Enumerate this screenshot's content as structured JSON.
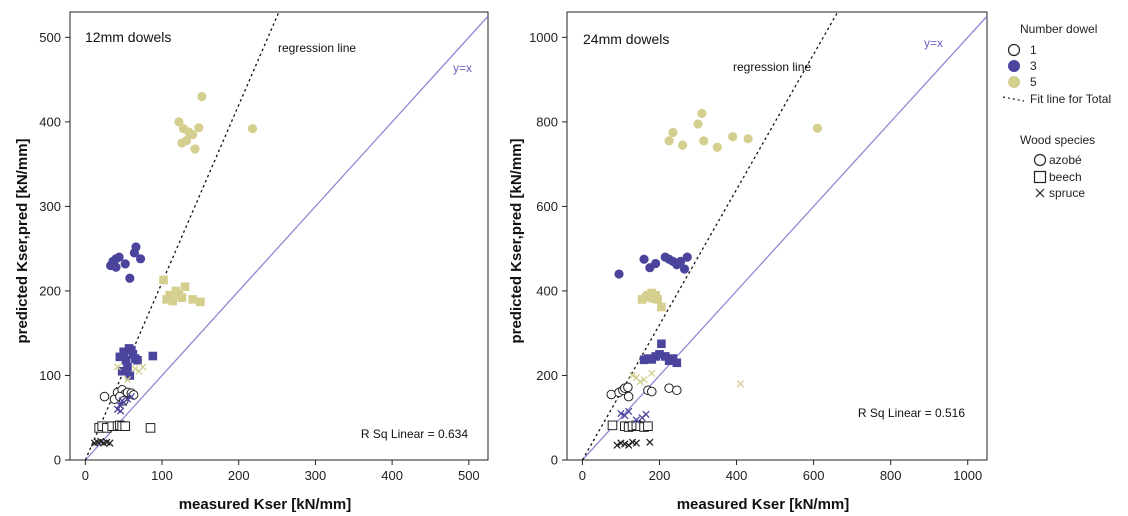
{
  "colors": {
    "one_dowel": "#ffffff",
    "three_dowels": "#4b449d",
    "five_dowels": "#d4cf8f",
    "identity_line": "#8f88d6",
    "regression_line": "#111111"
  },
  "legend": {
    "number_title": "Number dowel",
    "number_items": [
      {
        "label": "1",
        "key": "one_dowel"
      },
      {
        "label": "3",
        "key": "three_dowels"
      },
      {
        "label": "5",
        "key": "five_dowels"
      }
    ],
    "fit_label": "Fit line for Total",
    "species_title": "Wood species",
    "species_items": [
      {
        "label": "azobé",
        "marker": "circle"
      },
      {
        "label": "beech",
        "marker": "square"
      },
      {
        "label": "spruce",
        "marker": "cross"
      }
    ]
  },
  "chart_data": [
    {
      "type": "scatter",
      "title": "12mm dowels",
      "xlabel": "measured Kser [kN/mm]",
      "ylabel": "predicted Kser,pred [kN/mm]",
      "xlim": [
        -20,
        525
      ],
      "ylim": [
        0,
        530
      ],
      "xticks": [
        0,
        100,
        200,
        300,
        400,
        500
      ],
      "yticks": [
        0,
        100,
        200,
        300,
        400,
        500
      ],
      "regression_label": "regression line",
      "identity_label": "y=x",
      "r2_label": "R Sq Linear = 0.634",
      "regression": {
        "slope": 2.1,
        "intercept": 0
      },
      "grid": false,
      "series": [
        {
          "name": "1",
          "species": "azobé",
          "points": [
            [
              25,
              75
            ],
            [
              38,
              72
            ],
            [
              42,
              80
            ],
            [
              48,
              83
            ],
            [
              52,
              78
            ],
            [
              55,
              80
            ],
            [
              60,
              79
            ],
            [
              63,
              77
            ],
            [
              45,
              75
            ],
            [
              50,
              70
            ]
          ]
        },
        {
          "name": "1",
          "species": "beech",
          "points": [
            [
              18,
              38
            ],
            [
              22,
              40
            ],
            [
              28,
              38
            ],
            [
              35,
              40
            ],
            [
              42,
              40
            ],
            [
              45,
              41
            ],
            [
              48,
              40
            ],
            [
              52,
              40
            ],
            [
              85,
              38
            ]
          ]
        },
        {
          "name": "1",
          "species": "spruce",
          "points": [
            [
              12,
              20
            ],
            [
              16,
              21
            ],
            [
              20,
              22
            ],
            [
              24,
              20
            ],
            [
              28,
              21
            ],
            [
              32,
              20
            ]
          ]
        },
        {
          "name": "3",
          "species": "azobé",
          "points": [
            [
              33,
              230
            ],
            [
              36,
              235
            ],
            [
              40,
              238
            ],
            [
              44,
              240
            ],
            [
              52,
              232
            ],
            [
              58,
              215
            ],
            [
              64,
              245
            ],
            [
              66,
              252
            ],
            [
              72,
              238
            ],
            [
              40,
              228
            ]
          ]
        },
        {
          "name": "3",
          "species": "beech",
          "points": [
            [
              45,
              122
            ],
            [
              50,
              128
            ],
            [
              53,
              118
            ],
            [
              57,
              132
            ],
            [
              60,
              130
            ],
            [
              62,
              125
            ],
            [
              65,
              120
            ],
            [
              68,
              118
            ],
            [
              88,
              123
            ],
            [
              55,
              110
            ],
            [
              48,
              105
            ],
            [
              58,
              100
            ]
          ]
        },
        {
          "name": "3",
          "species": "spruce",
          "points": [
            [
              42,
              60
            ],
            [
              45,
              65
            ],
            [
              48,
              70
            ],
            [
              50,
              68
            ],
            [
              55,
              72
            ],
            [
              60,
              75
            ],
            [
              46,
              58
            ]
          ]
        },
        {
          "name": "5",
          "species": "azobé",
          "points": [
            [
              122,
              400
            ],
            [
              128,
              392
            ],
            [
              132,
              378
            ],
            [
              126,
              375
            ],
            [
              140,
              385
            ],
            [
              143,
              368
            ],
            [
              148,
              393
            ],
            [
              152,
              430
            ],
            [
              135,
              388
            ],
            [
              218,
              392
            ]
          ]
        },
        {
          "name": "5",
          "species": "beech",
          "points": [
            [
              102,
              213
            ],
            [
              106,
              190
            ],
            [
              110,
              195
            ],
            [
              114,
              188
            ],
            [
              118,
              200
            ],
            [
              122,
              196
            ],
            [
              126,
              192
            ],
            [
              130,
              205
            ],
            [
              140,
              190
            ],
            [
              150,
              187
            ]
          ]
        },
        {
          "name": "5",
          "species": "spruce",
          "points": [
            [
              42,
              110
            ],
            [
              55,
              95
            ],
            [
              65,
              108
            ],
            [
              70,
              105
            ],
            [
              75,
              110
            ]
          ]
        }
      ]
    },
    {
      "type": "scatter",
      "title": "24mm dowels",
      "xlabel": "measured Kser [kN/mm]",
      "ylabel": "predicted Kser,pred [kN/mm]",
      "xlim": [
        -40,
        1050
      ],
      "ylim": [
        0,
        1060
      ],
      "xticks": [
        0,
        200,
        400,
        600,
        800,
        1000
      ],
      "yticks": [
        0,
        200,
        400,
        600,
        800,
        1000
      ],
      "regression_label": "regression line",
      "identity_label": "y=x",
      "r2_label": "R Sq Linear = 0.516",
      "regression": {
        "slope": 1.6,
        "intercept": 0
      },
      "grid": false,
      "series": [
        {
          "name": "1",
          "species": "azobé",
          "points": [
            [
              75,
              155
            ],
            [
              95,
              160
            ],
            [
              105,
              165
            ],
            [
              110,
              170
            ],
            [
              118,
              172
            ],
            [
              120,
              150
            ],
            [
              170,
              165
            ],
            [
              180,
              162
            ],
            [
              225,
              170
            ],
            [
              245,
              165
            ]
          ]
        },
        {
          "name": "1",
          "species": "beech",
          "points": [
            [
              78,
              82
            ],
            [
              110,
              80
            ],
            [
              120,
              78
            ],
            [
              130,
              80
            ],
            [
              140,
              82
            ],
            [
              150,
              80
            ],
            [
              160,
              78
            ],
            [
              170,
              80
            ]
          ]
        },
        {
          "name": "1",
          "species": "spruce",
          "points": [
            [
              90,
              35
            ],
            [
              100,
              40
            ],
            [
              110,
              38
            ],
            [
              120,
              35
            ],
            [
              130,
              42
            ],
            [
              140,
              40
            ],
            [
              175,
              42
            ]
          ]
        },
        {
          "name": "3",
          "species": "azobé",
          "points": [
            [
              95,
              440
            ],
            [
              160,
              475
            ],
            [
              175,
              455
            ],
            [
              190,
              465
            ],
            [
              215,
              480
            ],
            [
              225,
              475
            ],
            [
              235,
              470
            ],
            [
              245,
              462
            ],
            [
              255,
              470
            ],
            [
              265,
              452
            ],
            [
              272,
              480
            ]
          ]
        },
        {
          "name": "3",
          "species": "beech",
          "points": [
            [
              160,
              237
            ],
            [
              170,
              240
            ],
            [
              180,
              238
            ],
            [
              190,
              245
            ],
            [
              200,
              250
            ],
            [
              205,
              275
            ],
            [
              215,
              245
            ],
            [
              225,
              235
            ],
            [
              235,
              240
            ],
            [
              245,
              230
            ]
          ]
        },
        {
          "name": "3",
          "species": "spruce",
          "points": [
            [
              100,
              110
            ],
            [
              110,
              105
            ],
            [
              120,
              115
            ],
            [
              140,
              95
            ],
            [
              155,
              100
            ],
            [
              165,
              108
            ]
          ]
        },
        {
          "name": "5",
          "species": "azobé",
          "points": [
            [
              225,
              755
            ],
            [
              235,
              775
            ],
            [
              260,
              745
            ],
            [
              300,
              795
            ],
            [
              310,
              820
            ],
            [
              315,
              755
            ],
            [
              350,
              740
            ],
            [
              390,
              765
            ],
            [
              430,
              760
            ],
            [
              610,
              785
            ]
          ]
        },
        {
          "name": "5",
          "species": "beech",
          "points": [
            [
              155,
              380
            ],
            [
              165,
              385
            ],
            [
              170,
              390
            ],
            [
              175,
              385
            ],
            [
              180,
              395
            ],
            [
              185,
              382
            ],
            [
              190,
              390
            ],
            [
              195,
              380
            ],
            [
              205,
              362
            ]
          ]
        },
        {
          "name": "5",
          "species": "spruce",
          "points": [
            [
              130,
              200
            ],
            [
              140,
              195
            ],
            [
              150,
              185
            ],
            [
              160,
              190
            ],
            [
              180,
              205
            ],
            [
              410,
              180
            ]
          ]
        }
      ]
    }
  ]
}
